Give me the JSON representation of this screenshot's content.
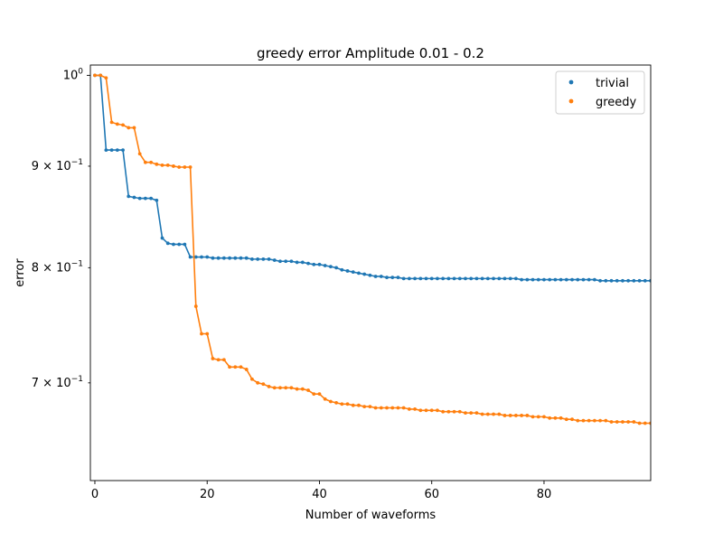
{
  "chart_data": {
    "type": "line",
    "title": "greedy error Amplitude 0.01 - 0.2",
    "xlabel": "Number of waveforms",
    "ylabel": "error",
    "xlim": [
      -0.8,
      99
    ],
    "ylim": [
      0.625,
      1.012
    ],
    "yscale": "log",
    "grid": false,
    "legend_position": "top-right",
    "x_ticks": [
      {
        "value": 0,
        "label": "0"
      },
      {
        "value": 20,
        "label": "20"
      },
      {
        "value": 40,
        "label": "40"
      },
      {
        "value": 60,
        "label": "60"
      },
      {
        "value": 80,
        "label": "80"
      }
    ],
    "y_ticks": [
      {
        "value": 1.0,
        "label": "10",
        "exp": "0"
      },
      {
        "value": 0.9,
        "label": "9 × 10",
        "exp": "−1"
      },
      {
        "value": 0.8,
        "label": "8 × 10",
        "exp": "−1"
      },
      {
        "value": 0.7,
        "label": "7 × 10",
        "exp": "−1"
      }
    ],
    "series": [
      {
        "name": "trivial",
        "color": "#1f77b4",
        "values": [
          1.0,
          1.0,
          0.917,
          0.917,
          0.917,
          0.917,
          0.869,
          0.868,
          0.867,
          0.867,
          0.867,
          0.865,
          0.828,
          0.823,
          0.822,
          0.822,
          0.822,
          0.81,
          0.81,
          0.81,
          0.81,
          0.809,
          0.809,
          0.809,
          0.809,
          0.809,
          0.809,
          0.809,
          0.808,
          0.808,
          0.808,
          0.808,
          0.807,
          0.806,
          0.806,
          0.806,
          0.805,
          0.805,
          0.804,
          0.803,
          0.803,
          0.802,
          0.801,
          0.8,
          0.798,
          0.797,
          0.796,
          0.795,
          0.794,
          0.793,
          0.792,
          0.792,
          0.791,
          0.791,
          0.791,
          0.79,
          0.79,
          0.79,
          0.79,
          0.79,
          0.79,
          0.79,
          0.79,
          0.79,
          0.79,
          0.79,
          0.79,
          0.79,
          0.79,
          0.79,
          0.79,
          0.79,
          0.79,
          0.79,
          0.79,
          0.79,
          0.789,
          0.789,
          0.789,
          0.789,
          0.789,
          0.789,
          0.789,
          0.789,
          0.789,
          0.789,
          0.789,
          0.789,
          0.789,
          0.789,
          0.788,
          0.788,
          0.788,
          0.788,
          0.788,
          0.788,
          0.788,
          0.788,
          0.788,
          0.788
        ]
      },
      {
        "name": "greedy",
        "color": "#ff7f0e",
        "values": [
          1.0,
          1.0,
          0.997,
          0.947,
          0.945,
          0.944,
          0.941,
          0.941,
          0.913,
          0.904,
          0.904,
          0.902,
          0.901,
          0.901,
          0.9,
          0.899,
          0.899,
          0.899,
          0.765,
          0.741,
          0.741,
          0.72,
          0.719,
          0.719,
          0.713,
          0.713,
          0.713,
          0.711,
          0.703,
          0.7,
          0.699,
          0.697,
          0.696,
          0.696,
          0.696,
          0.696,
          0.695,
          0.695,
          0.694,
          0.691,
          0.691,
          0.687,
          0.685,
          0.684,
          0.683,
          0.683,
          0.682,
          0.682,
          0.681,
          0.681,
          0.68,
          0.68,
          0.68,
          0.68,
          0.68,
          0.68,
          0.679,
          0.679,
          0.678,
          0.678,
          0.678,
          0.678,
          0.677,
          0.677,
          0.677,
          0.677,
          0.676,
          0.676,
          0.676,
          0.675,
          0.675,
          0.675,
          0.675,
          0.674,
          0.674,
          0.674,
          0.674,
          0.674,
          0.673,
          0.673,
          0.673,
          0.672,
          0.672,
          0.672,
          0.671,
          0.671,
          0.67,
          0.67,
          0.67,
          0.67,
          0.67,
          0.67,
          0.669,
          0.669,
          0.669,
          0.669,
          0.669,
          0.668,
          0.668,
          0.668
        ]
      }
    ]
  }
}
